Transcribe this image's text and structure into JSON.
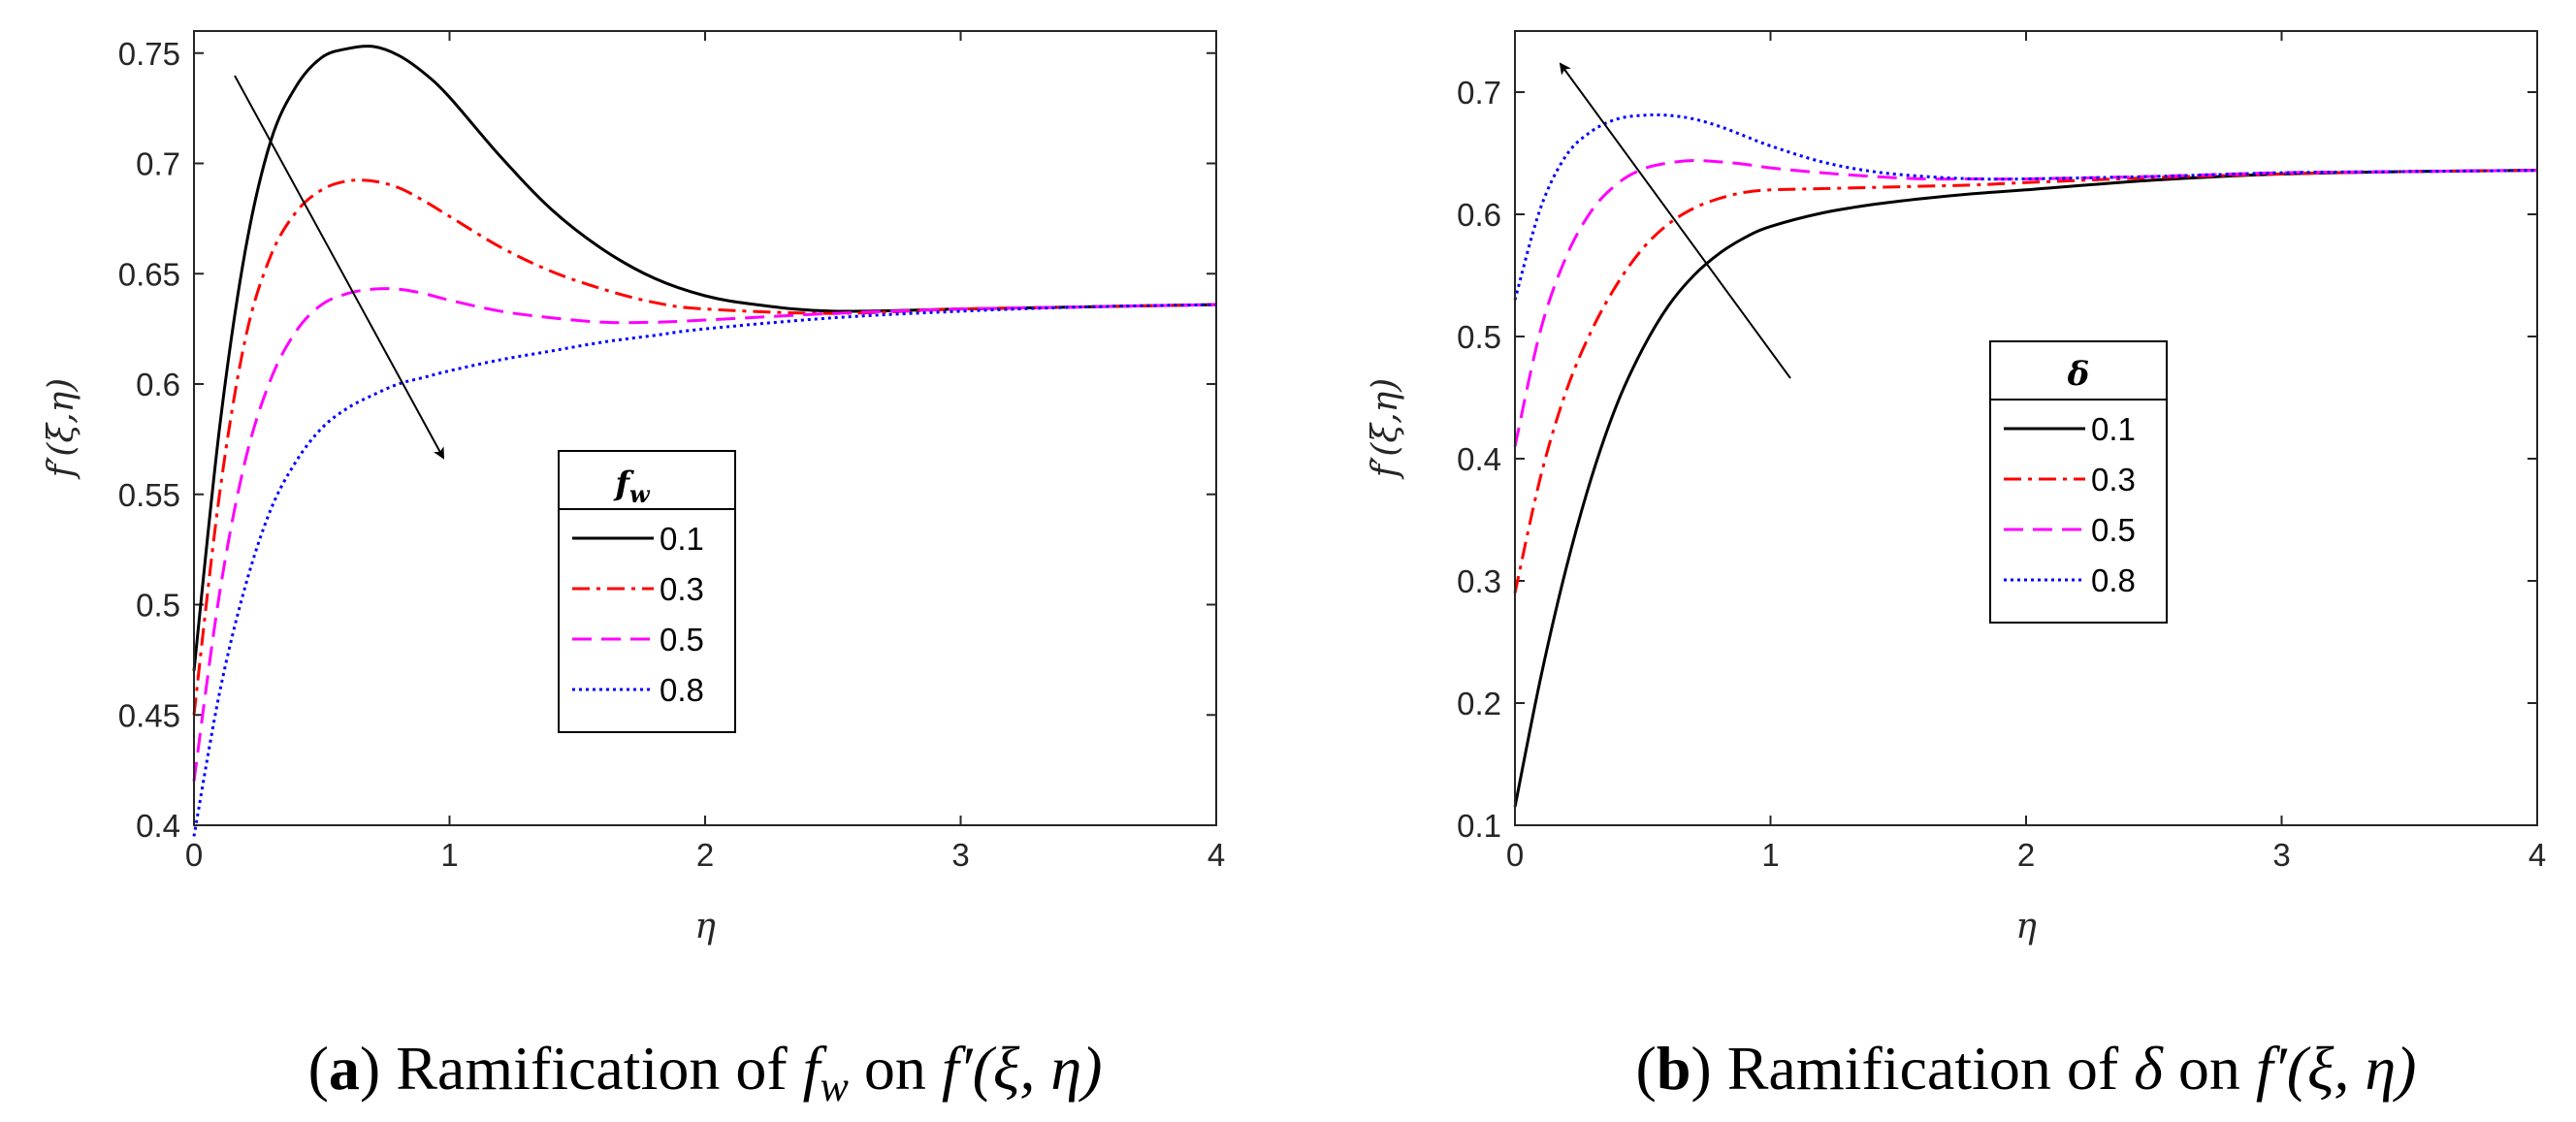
{
  "chart_data": [
    {
      "type": "line",
      "panel": "a",
      "xlabel": "η",
      "ylabel": "f′(ξ,η)",
      "xlim": [
        0,
        4
      ],
      "ylim": [
        0.4,
        0.76
      ],
      "xticks": [
        0,
        1,
        2,
        3,
        4
      ],
      "yticks": [
        0.4,
        0.45,
        0.5,
        0.55,
        0.6,
        0.65,
        0.7,
        0.75
      ],
      "legend_title": "f_w",
      "legend_position": "center-right",
      "arrow": "decreasing",
      "series": [
        {
          "name": "0.1",
          "style": "solid",
          "color": "#000000",
          "x": [
            0,
            0.1,
            0.2,
            0.3,
            0.4,
            0.5,
            0.6,
            0.7,
            0.8,
            0.9,
            1.0,
            1.2,
            1.4,
            1.6,
            1.8,
            2.0,
            2.2,
            2.5,
            3.0,
            3.5,
            4.0
          ],
          "y": [
            0.47,
            0.58,
            0.66,
            0.71,
            0.735,
            0.748,
            0.752,
            0.753,
            0.749,
            0.741,
            0.73,
            0.703,
            0.679,
            0.661,
            0.648,
            0.64,
            0.636,
            0.633,
            0.634,
            0.635,
            0.636
          ]
        },
        {
          "name": "0.3",
          "style": "dashdot",
          "color": "#ff0000",
          "x": [
            0,
            0.1,
            0.2,
            0.3,
            0.4,
            0.5,
            0.6,
            0.7,
            0.8,
            0.9,
            1.0,
            1.2,
            1.4,
            1.6,
            1.8,
            2.0,
            2.5,
            3.0,
            3.5,
            4.0
          ],
          "y": [
            0.45,
            0.55,
            0.62,
            0.658,
            0.678,
            0.688,
            0.692,
            0.692,
            0.689,
            0.683,
            0.676,
            0.662,
            0.651,
            0.643,
            0.637,
            0.634,
            0.632,
            0.634,
            0.635,
            0.636
          ]
        },
        {
          "name": "0.5",
          "style": "dashed",
          "color": "#ff00ff",
          "x": [
            0,
            0.1,
            0.2,
            0.3,
            0.4,
            0.5,
            0.6,
            0.7,
            0.8,
            0.9,
            1.0,
            1.2,
            1.4,
            1.6,
            1.8,
            2.0,
            2.5,
            3.0,
            3.5,
            4.0
          ],
          "y": [
            0.42,
            0.505,
            0.565,
            0.602,
            0.624,
            0.636,
            0.641,
            0.643,
            0.643,
            0.641,
            0.638,
            0.633,
            0.63,
            0.628,
            0.628,
            0.629,
            0.632,
            0.634,
            0.635,
            0.636
          ]
        },
        {
          "name": "0.8",
          "style": "dotted",
          "color": "#0000ff",
          "x": [
            0,
            0.1,
            0.2,
            0.3,
            0.4,
            0.5,
            0.6,
            0.7,
            0.8,
            0.9,
            1.0,
            1.2,
            1.4,
            1.6,
            1.8,
            2.0,
            2.5,
            3.0,
            3.5,
            4.0
          ],
          "y": [
            0.395,
            0.46,
            0.508,
            0.543,
            0.565,
            0.58,
            0.589,
            0.595,
            0.6,
            0.603,
            0.606,
            0.611,
            0.615,
            0.619,
            0.622,
            0.625,
            0.63,
            0.633,
            0.635,
            0.636
          ]
        }
      ]
    },
    {
      "type": "line",
      "panel": "b",
      "xlabel": "η",
      "ylabel": "f′(ξ,η)",
      "xlim": [
        0,
        4
      ],
      "ylim": [
        0.1,
        0.75
      ],
      "xticks": [
        0,
        1,
        2,
        3,
        4
      ],
      "yticks": [
        0.1,
        0.2,
        0.3,
        0.4,
        0.5,
        0.6,
        0.7
      ],
      "legend_title": "δ",
      "legend_position": "center-right",
      "arrow": "increasing",
      "series": [
        {
          "name": "0.1",
          "style": "solid",
          "color": "#000000",
          "x": [
            0,
            0.1,
            0.2,
            0.3,
            0.4,
            0.5,
            0.6,
            0.7,
            0.8,
            0.9,
            1.0,
            1.2,
            1.4,
            1.6,
            1.8,
            2.0,
            2.5,
            3.0,
            3.5,
            4.0
          ],
          "y": [
            0.115,
            0.22,
            0.31,
            0.385,
            0.445,
            0.49,
            0.525,
            0.55,
            0.568,
            0.581,
            0.59,
            0.601,
            0.608,
            0.613,
            0.617,
            0.62,
            0.628,
            0.633,
            0.635,
            0.636
          ]
        },
        {
          "name": "0.3",
          "style": "dashdot",
          "color": "#ff0000",
          "x": [
            0,
            0.1,
            0.2,
            0.3,
            0.4,
            0.5,
            0.6,
            0.7,
            0.8,
            0.9,
            1.0,
            1.2,
            1.4,
            1.6,
            1.8,
            2.0,
            2.5,
            3.0,
            3.5,
            4.0
          ],
          "y": [
            0.29,
            0.385,
            0.455,
            0.505,
            0.543,
            0.572,
            0.592,
            0.605,
            0.613,
            0.618,
            0.62,
            0.621,
            0.622,
            0.623,
            0.624,
            0.626,
            0.63,
            0.633,
            0.635,
            0.636
          ]
        },
        {
          "name": "0.5",
          "style": "dashed",
          "color": "#ff00ff",
          "x": [
            0,
            0.1,
            0.2,
            0.3,
            0.4,
            0.5,
            0.6,
            0.7,
            0.8,
            0.9,
            1.0,
            1.2,
            1.4,
            1.6,
            1.8,
            2.0,
            2.5,
            3.0,
            3.5,
            4.0
          ],
          "y": [
            0.41,
            0.505,
            0.565,
            0.603,
            0.625,
            0.637,
            0.642,
            0.644,
            0.643,
            0.641,
            0.638,
            0.634,
            0.631,
            0.629,
            0.629,
            0.629,
            0.631,
            0.634,
            0.635,
            0.636
          ]
        },
        {
          "name": "0.8",
          "style": "dotted",
          "color": "#0000ff",
          "x": [
            0,
            0.1,
            0.2,
            0.3,
            0.4,
            0.5,
            0.6,
            0.7,
            0.8,
            0.9,
            1.0,
            1.2,
            1.4,
            1.6,
            1.8,
            2.0,
            2.5,
            3.0,
            3.5,
            4.0
          ],
          "y": [
            0.53,
            0.605,
            0.648,
            0.668,
            0.678,
            0.681,
            0.681,
            0.678,
            0.672,
            0.664,
            0.656,
            0.643,
            0.635,
            0.631,
            0.629,
            0.629,
            0.631,
            0.634,
            0.635,
            0.636
          ]
        }
      ]
    }
  ],
  "captions": {
    "a": {
      "label": "a",
      "pre": " Ramification of ",
      "sym": "f",
      "sub": "w",
      "post": " on ",
      "fn": "f′(ξ, η)"
    },
    "b": {
      "label": "b",
      "pre": " Ramification of ",
      "sym": "δ",
      "post": " on ",
      "fn": "f′(ξ, η)"
    }
  },
  "legend_sub_a": "w",
  "legend_sym_a": "f"
}
